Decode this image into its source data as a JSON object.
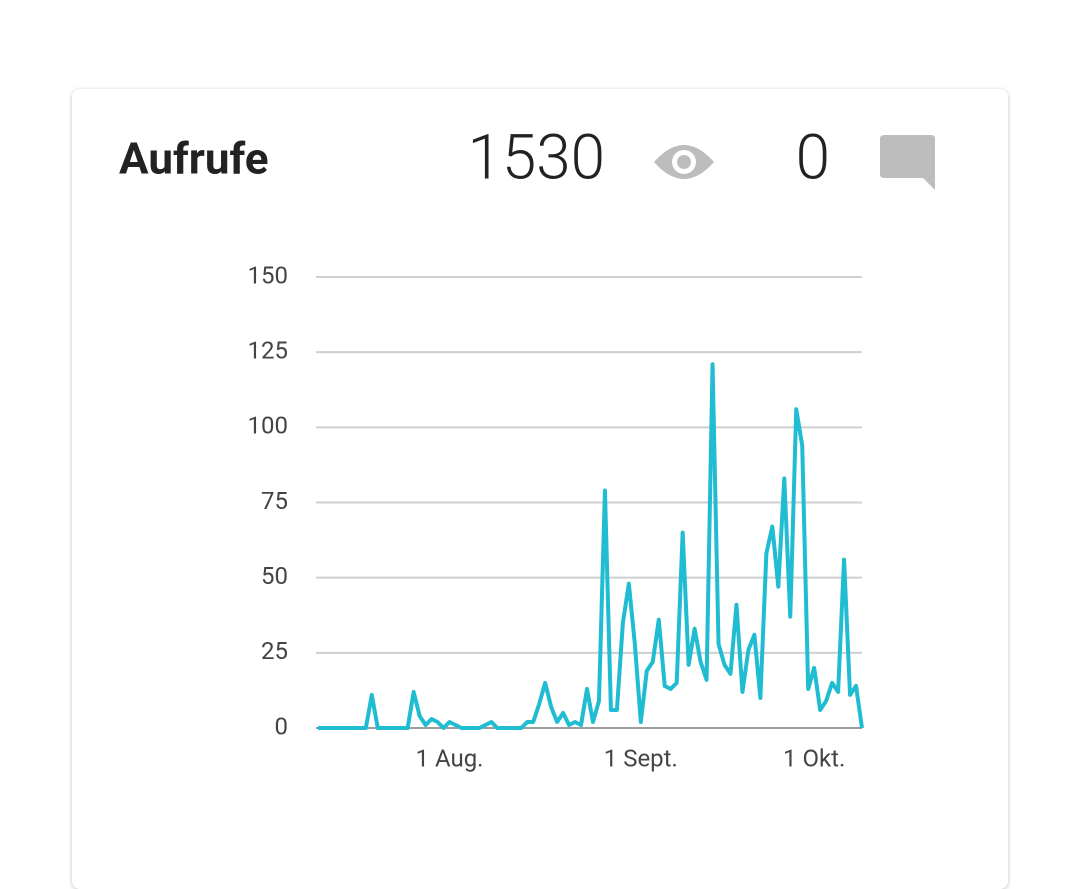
{
  "header": {
    "title": "Aufrufe",
    "views": 1530,
    "comments": 0
  },
  "chart_data": {
    "type": "line",
    "categories": [
      null,
      null,
      null,
      null,
      null,
      null,
      null,
      null,
      null,
      null,
      null,
      null,
      null,
      null,
      null,
      null,
      null,
      null,
      null,
      null,
      null,
      null,
      "1 Aug.",
      null,
      null,
      null,
      null,
      null,
      null,
      null,
      null,
      null,
      null,
      null,
      null,
      null,
      null,
      null,
      null,
      null,
      null,
      null,
      null,
      null,
      null,
      null,
      null,
      null,
      null,
      null,
      null,
      null,
      null,
      null,
      "1 Sept.",
      null,
      null,
      null,
      null,
      null,
      null,
      null,
      null,
      null,
      null,
      null,
      null,
      null,
      null,
      null,
      null,
      null,
      null,
      null,
      null,
      null,
      null,
      null,
      null,
      null,
      null,
      null,
      null,
      "1 Okt.",
      null,
      null,
      null,
      null,
      null,
      null,
      null,
      null
    ],
    "series": [
      {
        "color": "#1fbcd2",
        "values": [
          0,
          0,
          0,
          0,
          0,
          0,
          0,
          0,
          0,
          11,
          0,
          0,
          0,
          0,
          0,
          0,
          12,
          4,
          1,
          3,
          2,
          0,
          2,
          1,
          0,
          0,
          0,
          0,
          1,
          2,
          0,
          0,
          0,
          0,
          0,
          2,
          2,
          8,
          15,
          7,
          2,
          5,
          1,
          2,
          1,
          13,
          2,
          9,
          79,
          6,
          6,
          35,
          48,
          28,
          2,
          19,
          22,
          36,
          14,
          13,
          15,
          65,
          21,
          33,
          22,
          16,
          121,
          28,
          21,
          18,
          41,
          12,
          26,
          31,
          10,
          58,
          67,
          47,
          83,
          37,
          106,
          94,
          13,
          20,
          6,
          9,
          15,
          12,
          56,
          11,
          14,
          0
        ]
      }
    ],
    "ylim": [
      0,
      150
    ],
    "yticks": [
      0,
      25,
      50,
      75,
      100,
      125,
      150
    ],
    "grid": true
  }
}
